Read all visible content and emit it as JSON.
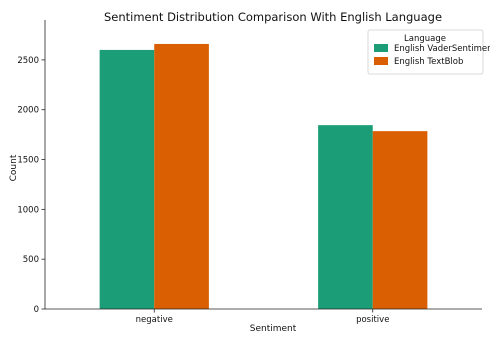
{
  "chart_data": {
    "type": "bar",
    "title": "Sentiment Distribution Comparison With English Language",
    "xlabel": "Sentiment",
    "ylabel": "Count",
    "categories": [
      "negative",
      "positive"
    ],
    "series": [
      {
        "name": "English VaderSentimen",
        "values": [
          2600,
          1845
        ],
        "color": "#1b9e77"
      },
      {
        "name": "English TextBlob",
        "values": [
          2660,
          1785
        ],
        "color": "#d95f02"
      }
    ],
    "ylim": [
      0,
      2800
    ],
    "yticks": [
      0,
      500,
      1000,
      1500,
      2000,
      2500
    ],
    "grid": false,
    "legend": {
      "title": "Language",
      "placement": "top-right"
    }
  }
}
